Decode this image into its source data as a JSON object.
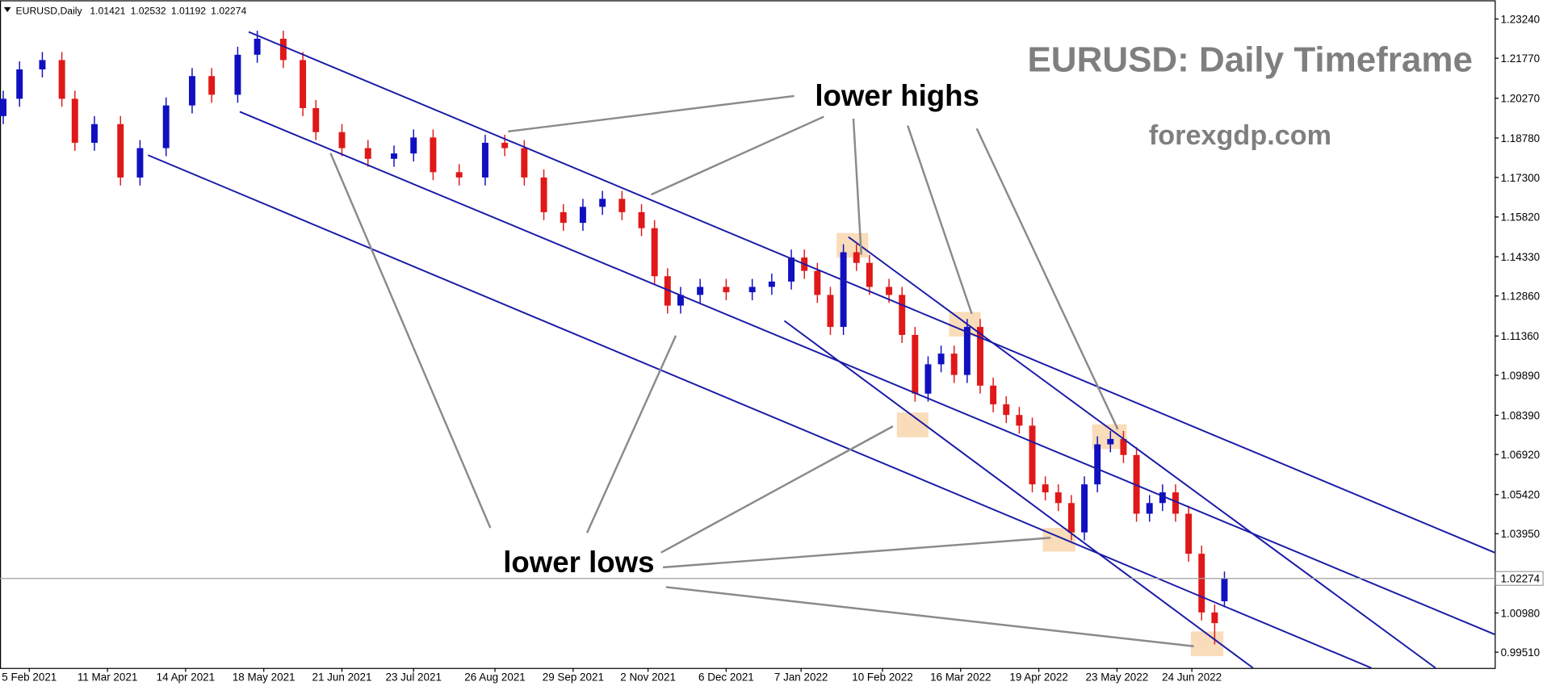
{
  "chart_data": {
    "type": "candlestick",
    "symbol": "EURUSD,Daily",
    "title": "EURUSD: Daily Timeframe",
    "subtitle": "forexgdp.com",
    "annotations": [
      "lower highs",
      "lower lows"
    ],
    "up_color": "#1010c0",
    "down_color": "#e01818",
    "x": [
      0,
      5,
      12,
      18,
      22,
      28,
      36,
      42,
      50,
      58,
      64,
      72,
      78,
      86,
      92,
      96,
      104,
      112,
      120,
      126,
      132,
      140,
      148,
      154,
      160,
      166,
      172,
      178,
      184,
      190,
      196,
      200,
      204,
      208,
      214,
      222,
      230,
      236,
      242,
      246,
      250,
      254,
      258,
      262,
      266,
      272,
      276,
      280,
      284,
      288,
      292,
      296,
      300,
      304,
      308,
      312,
      316,
      320,
      324,
      328,
      332,
      336,
      340,
      344,
      348,
      352,
      356,
      360,
      364,
      368,
      372,
      375
    ],
    "open": [
      1.196,
      1.2025,
      1.2135,
      1.217,
      1.2025,
      1.186,
      1.193,
      1.173,
      1.184,
      1.2,
      1.211,
      1.204,
      1.219,
      1.225,
      1.217,
      1.199,
      1.19,
      1.184,
      1.18,
      1.182,
      1.188,
      1.175,
      1.173,
      1.186,
      1.184,
      1.173,
      1.16,
      1.156,
      1.162,
      1.165,
      1.16,
      1.154,
      1.136,
      1.125,
      1.129,
      1.132,
      1.13,
      1.132,
      1.134,
      1.143,
      1.138,
      1.129,
      1.117,
      1.145,
      1.141,
      1.132,
      1.129,
      1.114,
      1.092,
      1.103,
      1.107,
      1.099,
      1.117,
      1.095,
      1.088,
      1.084,
      1.08,
      1.058,
      1.055,
      1.051,
      1.04,
      1.058,
      1.073,
      1.075,
      1.069,
      1.047,
      1.051,
      1.055,
      1.047,
      1.032,
      1.01,
      1.01421
    ],
    "high": [
      1.2055,
      1.2165,
      1.22,
      1.22,
      1.2055,
      1.196,
      1.196,
      1.187,
      1.203,
      1.214,
      1.214,
      1.222,
      1.228,
      1.228,
      1.22,
      1.202,
      1.193,
      1.187,
      1.185,
      1.191,
      1.191,
      1.178,
      1.189,
      1.189,
      1.187,
      1.176,
      1.163,
      1.165,
      1.168,
      1.168,
      1.163,
      1.157,
      1.139,
      1.132,
      1.135,
      1.135,
      1.135,
      1.137,
      1.146,
      1.146,
      1.141,
      1.132,
      1.148,
      1.148,
      1.144,
      1.135,
      1.132,
      1.117,
      1.106,
      1.11,
      1.11,
      1.12,
      1.12,
      1.098,
      1.091,
      1.087,
      1.083,
      1.061,
      1.058,
      1.054,
      1.061,
      1.076,
      1.078,
      1.078,
      1.072,
      1.054,
      1.058,
      1.058,
      1.05,
      1.035,
      1.013,
      1.02532
    ],
    "low": [
      1.193,
      1.1995,
      1.2105,
      1.1995,
      1.183,
      1.183,
      1.17,
      1.17,
      1.181,
      1.197,
      1.201,
      1.201,
      1.216,
      1.214,
      1.196,
      1.187,
      1.181,
      1.177,
      1.177,
      1.179,
      1.172,
      1.17,
      1.17,
      1.181,
      1.17,
      1.157,
      1.153,
      1.153,
      1.159,
      1.157,
      1.151,
      1.133,
      1.122,
      1.122,
      1.126,
      1.127,
      1.127,
      1.129,
      1.131,
      1.135,
      1.126,
      1.114,
      1.114,
      1.138,
      1.129,
      1.126,
      1.111,
      1.089,
      1.089,
      1.1,
      1.096,
      1.096,
      1.092,
      1.085,
      1.081,
      1.077,
      1.055,
      1.052,
      1.048,
      1.037,
      1.037,
      1.055,
      1.07,
      1.066,
      1.044,
      1.044,
      1.048,
      1.044,
      1.029,
      1.007,
      0.998,
      1.01192
    ],
    "close": [
      1.2025,
      1.2135,
      1.217,
      1.2025,
      1.186,
      1.193,
      1.173,
      1.184,
      1.2,
      1.211,
      1.204,
      1.219,
      1.225,
      1.217,
      1.199,
      1.19,
      1.184,
      1.18,
      1.182,
      1.188,
      1.175,
      1.173,
      1.186,
      1.184,
      1.173,
      1.16,
      1.156,
      1.162,
      1.165,
      1.16,
      1.154,
      1.136,
      1.125,
      1.129,
      1.132,
      1.13,
      1.132,
      1.134,
      1.143,
      1.138,
      1.129,
      1.117,
      1.145,
      1.141,
      1.132,
      1.129,
      1.114,
      1.092,
      1.103,
      1.107,
      1.099,
      1.117,
      1.095,
      1.088,
      1.084,
      1.08,
      1.058,
      1.055,
      1.051,
      1.04,
      1.058,
      1.073,
      1.075,
      1.069,
      1.047,
      1.051,
      1.055,
      1.047,
      1.032,
      1.01,
      1.006,
      1.02274
    ],
    "xlim": [
      -1,
      458
    ],
    "ylim": [
      0.9892,
      1.2394
    ],
    "xticks": [
      {
        "value": 8,
        "label": "5 Feb 2021"
      },
      {
        "value": 32,
        "label": "11 Mar 2021"
      },
      {
        "value": 56,
        "label": "14 Apr 2021"
      },
      {
        "value": 80,
        "label": "18 May 2021"
      },
      {
        "value": 104,
        "label": "21 Jun 2021"
      },
      {
        "value": 126,
        "label": "23 Jul 2021"
      },
      {
        "value": 151,
        "label": "26 Aug 2021"
      },
      {
        "value": 175,
        "label": "29 Sep 2021"
      },
      {
        "value": 198,
        "label": "2 Nov 2021"
      },
      {
        "value": 222,
        "label": "6 Dec 2021"
      },
      {
        "value": 245,
        "label": "7 Jan 2022"
      },
      {
        "value": 270,
        "label": "10 Feb 2022"
      },
      {
        "value": 294,
        "label": "16 Mar 2022"
      },
      {
        "value": 318,
        "label": "19 Apr 2022"
      },
      {
        "value": 342,
        "label": "23 May 2022"
      },
      {
        "value": 365,
        "label": "24 Jun 2022"
      }
    ],
    "yticks": [
      {
        "value": 1.2324,
        "label": "1.23240"
      },
      {
        "value": 1.2177,
        "label": "1.21770"
      },
      {
        "value": 1.2027,
        "label": "1.20270"
      },
      {
        "value": 1.1878,
        "label": "1.18780"
      },
      {
        "value": 1.173,
        "label": "1.17300"
      },
      {
        "value": 1.1582,
        "label": "1.15820"
      },
      {
        "value": 1.1433,
        "label": "1.14330"
      },
      {
        "value": 1.1286,
        "label": "1.12860"
      },
      {
        "value": 1.1136,
        "label": "1.11360"
      },
      {
        "value": 1.0989,
        "label": "1.09890"
      },
      {
        "value": 1.0839,
        "label": "1.08390"
      },
      {
        "value": 1.0692,
        "label": "1.06920"
      },
      {
        "value": 1.0542,
        "label": "1.05420"
      },
      {
        "value": 1.0395,
        "label": "1.03950"
      },
      {
        "value": 1.0098,
        "label": "1.00980"
      },
      {
        "value": 0.9951,
        "label": "0.99510"
      }
    ],
    "grid": false
  }
}
